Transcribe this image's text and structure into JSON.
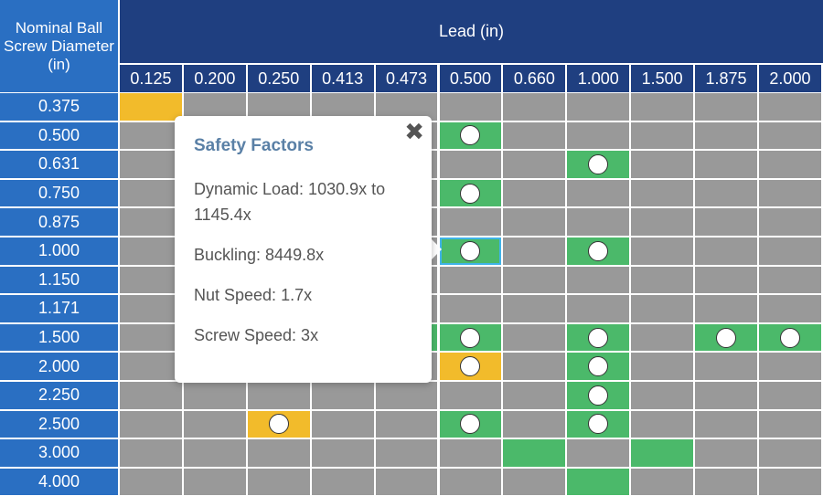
{
  "header": {
    "corner_label": "Nominal Ball Screw Diameter (in)",
    "top_label": "Lead (in)"
  },
  "leads": [
    "0.125",
    "0.200",
    "0.250",
    "0.413",
    "0.473",
    "0.500",
    "0.660",
    "1.000",
    "1.500",
    "1.875",
    "2.000"
  ],
  "diameters": [
    "0.375",
    "0.500",
    "0.631",
    "0.750",
    "0.875",
    "1.000",
    "1.150",
    "1.171",
    "1.500",
    "2.000",
    "2.250",
    "2.500",
    "3.000",
    "4.000"
  ],
  "cells": [
    {
      "row": 0,
      "col": 0,
      "status": "yellow",
      "marker": false
    },
    {
      "row": 1,
      "col": 5,
      "status": "green",
      "marker": true
    },
    {
      "row": 2,
      "col": 7,
      "status": "green",
      "marker": true
    },
    {
      "row": 3,
      "col": 5,
      "status": "green",
      "marker": true
    },
    {
      "row": 5,
      "col": 5,
      "status": "green",
      "marker": true,
      "selected": true
    },
    {
      "row": 5,
      "col": 7,
      "status": "green",
      "marker": true
    },
    {
      "row": 8,
      "col": 4,
      "status": "green",
      "marker": false
    },
    {
      "row": 8,
      "col": 5,
      "status": "green",
      "marker": true
    },
    {
      "row": 8,
      "col": 7,
      "status": "green",
      "marker": true
    },
    {
      "row": 8,
      "col": 9,
      "status": "green",
      "marker": true
    },
    {
      "row": 8,
      "col": 10,
      "status": "green",
      "marker": true
    },
    {
      "row": 9,
      "col": 5,
      "status": "yellow",
      "marker": true
    },
    {
      "row": 9,
      "col": 7,
      "status": "green",
      "marker": true
    },
    {
      "row": 10,
      "col": 7,
      "status": "green",
      "marker": true
    },
    {
      "row": 11,
      "col": 2,
      "status": "yellow",
      "marker": true
    },
    {
      "row": 11,
      "col": 5,
      "status": "green",
      "marker": true
    },
    {
      "row": 11,
      "col": 7,
      "status": "green",
      "marker": true
    },
    {
      "row": 12,
      "col": 6,
      "status": "green",
      "marker": false
    },
    {
      "row": 12,
      "col": 8,
      "status": "green",
      "marker": false
    },
    {
      "row": 13,
      "col": 7,
      "status": "green",
      "marker": false
    }
  ],
  "colors": {
    "header_dark": "#1f3f80",
    "header_light": "#2a6fc2",
    "empty": "#999999",
    "green": "#4bb96a",
    "yellow": "#f2bb2b",
    "selected_outline": "#3fb3e8"
  },
  "popup": {
    "title": "Safety Factors",
    "dynamic_load": "Dynamic Load: 1030.9x to 1145.4x",
    "buckling": "Buckling: 8449.8x",
    "nut_speed": "Nut Speed: 1.7x",
    "screw_speed": "Screw Speed: 3x",
    "close_icon": "close-icon"
  }
}
